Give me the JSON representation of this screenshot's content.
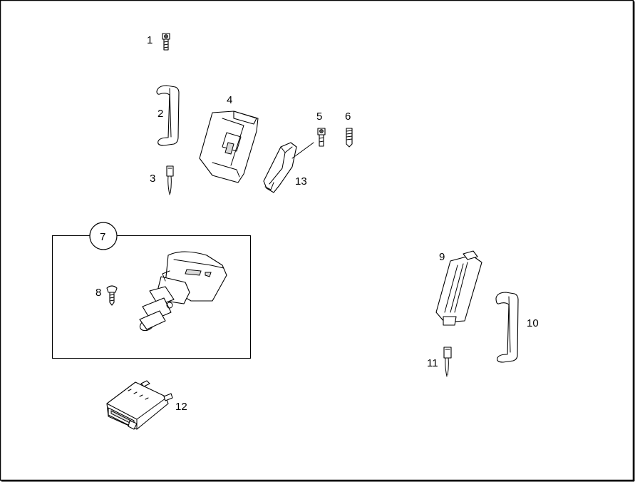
{
  "labels": {
    "p1": "1",
    "p2": "2",
    "p3": "3",
    "p4": "4",
    "p5": "5",
    "p6": "6",
    "p7": "7",
    "p8": "8",
    "p9": "9",
    "p10": "10",
    "p11": "11",
    "p12": "12",
    "p13": "13"
  },
  "colors": {
    "line": "#000000",
    "background": "#ffffff",
    "frame": "#000000"
  }
}
